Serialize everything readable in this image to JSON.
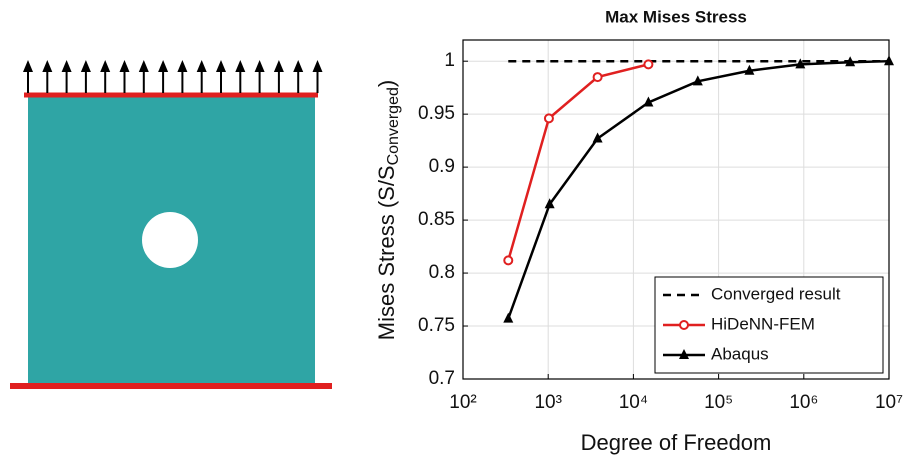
{
  "chart_data": {
    "type": "line",
    "title": "Max Mises Stress",
    "x_label": "Degree of Freedom",
    "y_label": [
      "Mises Stress (S/S",
      "Converged",
      ")"
    ],
    "xscale": "log",
    "grid": true,
    "legend": "lower right",
    "xlim": [
      100,
      10000000
    ],
    "xticks": [
      {
        "value": 100,
        "label": "10²"
      },
      {
        "value": 1000,
        "label": "10³"
      },
      {
        "value": 10000,
        "label": "10⁴"
      },
      {
        "value": 100000,
        "label": "10⁵"
      },
      {
        "value": 1000000,
        "label": "10⁶"
      },
      {
        "value": 10000000,
        "label": "10⁷"
      }
    ],
    "ylim": [
      0.7,
      1.02
    ],
    "yticks": [
      0.7,
      0.75,
      0.8,
      0.85,
      0.9,
      0.95,
      1
    ],
    "series": [
      {
        "name": "Converged result",
        "color": "#000000",
        "dash": "dashed",
        "marker": "none",
        "x": [
          340,
          10000000
        ],
        "values": [
          1,
          1
        ]
      },
      {
        "name": "HiDeNN-FEM",
        "color": "#e02020",
        "dash": "solid",
        "marker": "circle",
        "x": [
          340,
          1020,
          3800,
          15000
        ],
        "values": [
          0.812,
          0.946,
          0.985,
          0.997
        ]
      },
      {
        "name": "Abaqus",
        "color": "#000000",
        "dash": "solid",
        "marker": "triangle",
        "x": [
          340,
          1040,
          3800,
          15000,
          57000,
          230000,
          910000,
          3500000,
          10000000
        ],
        "values": [
          0.757,
          0.865,
          0.927,
          0.961,
          0.981,
          0.991,
          0.997,
          0.999,
          1.0
        ]
      }
    ]
  }
}
